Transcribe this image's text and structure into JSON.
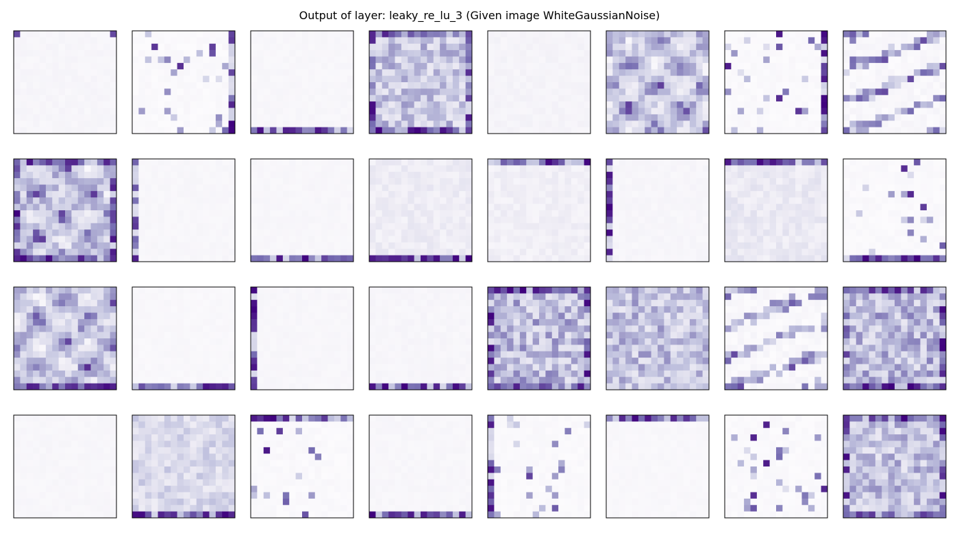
{
  "chart_data": {
    "type": "heatmap",
    "title": "Output of layer: leaky_re_lu_3 (Given image WhiteGaussianNoise)",
    "rows": 4,
    "cols": 8,
    "map_resolution": 16,
    "colormap": "Purples",
    "colormap_low": "#fcfbfd",
    "colormap_high": "#3f007d",
    "panels": [
      {
        "row": 0,
        "col": 0,
        "pattern": "faint-uniform",
        "mean_intensity": 0.06,
        "edge": "top-corners"
      },
      {
        "row": 0,
        "col": 1,
        "pattern": "sparse-specks",
        "mean_intensity": 0.08,
        "edge": "right"
      },
      {
        "row": 0,
        "col": 2,
        "pattern": "faint-uniform",
        "mean_intensity": 0.05,
        "edge": "bottom"
      },
      {
        "row": 0,
        "col": 3,
        "pattern": "dense-texture",
        "mean_intensity": 0.4,
        "edge": "all"
      },
      {
        "row": 0,
        "col": 4,
        "pattern": "faint-uniform",
        "mean_intensity": 0.08,
        "edge": "none"
      },
      {
        "row": 0,
        "col": 5,
        "pattern": "strong-blobs",
        "mean_intensity": 0.5,
        "edge": "none"
      },
      {
        "row": 0,
        "col": 6,
        "pattern": "sparse-specks",
        "mean_intensity": 0.07,
        "edge": "right"
      },
      {
        "row": 0,
        "col": 7,
        "pattern": "streaks",
        "mean_intensity": 0.25,
        "edge": "none"
      },
      {
        "row": 1,
        "col": 0,
        "pattern": "strong-blobs",
        "mean_intensity": 0.45,
        "edge": "all"
      },
      {
        "row": 1,
        "col": 1,
        "pattern": "faint-uniform",
        "mean_intensity": 0.05,
        "edge": "left"
      },
      {
        "row": 1,
        "col": 2,
        "pattern": "faint-uniform",
        "mean_intensity": 0.05,
        "edge": "bottom"
      },
      {
        "row": 1,
        "col": 3,
        "pattern": "medium-texture",
        "mean_intensity": 0.15,
        "edge": "bottom-right"
      },
      {
        "row": 1,
        "col": 4,
        "pattern": "medium-texture",
        "mean_intensity": 0.12,
        "edge": "top"
      },
      {
        "row": 1,
        "col": 5,
        "pattern": "faint-uniform",
        "mean_intensity": 0.06,
        "edge": "left"
      },
      {
        "row": 1,
        "col": 6,
        "pattern": "medium-texture",
        "mean_intensity": 0.18,
        "edge": "top"
      },
      {
        "row": 1,
        "col": 7,
        "pattern": "sparse-specks",
        "mean_intensity": 0.1,
        "edge": "bottom"
      },
      {
        "row": 2,
        "col": 0,
        "pattern": "strong-blobs",
        "mean_intensity": 0.45,
        "edge": "bottom"
      },
      {
        "row": 2,
        "col": 1,
        "pattern": "faint-uniform",
        "mean_intensity": 0.04,
        "edge": "bottom"
      },
      {
        "row": 2,
        "col": 2,
        "pattern": "faint-uniform",
        "mean_intensity": 0.05,
        "edge": "left"
      },
      {
        "row": 2,
        "col": 3,
        "pattern": "faint-uniform",
        "mean_intensity": 0.06,
        "edge": "bottom"
      },
      {
        "row": 2,
        "col": 4,
        "pattern": "dense-texture",
        "mean_intensity": 0.45,
        "edge": "all"
      },
      {
        "row": 2,
        "col": 5,
        "pattern": "dense-texture",
        "mean_intensity": 0.42,
        "edge": "none"
      },
      {
        "row": 2,
        "col": 6,
        "pattern": "streaks",
        "mean_intensity": 0.22,
        "edge": "none"
      },
      {
        "row": 2,
        "col": 7,
        "pattern": "dense-texture",
        "mean_intensity": 0.45,
        "edge": "all"
      },
      {
        "row": 3,
        "col": 0,
        "pattern": "faint-uniform",
        "mean_intensity": 0.05,
        "edge": "none"
      },
      {
        "row": 3,
        "col": 1,
        "pattern": "medium-texture",
        "mean_intensity": 0.3,
        "edge": "bottom"
      },
      {
        "row": 3,
        "col": 2,
        "pattern": "sparse-specks",
        "mean_intensity": 0.1,
        "edge": "top"
      },
      {
        "row": 3,
        "col": 3,
        "pattern": "faint-uniform",
        "mean_intensity": 0.05,
        "edge": "bottom-left"
      },
      {
        "row": 3,
        "col": 4,
        "pattern": "sparse-specks",
        "mean_intensity": 0.1,
        "edge": "left"
      },
      {
        "row": 3,
        "col": 5,
        "pattern": "faint-uniform",
        "mean_intensity": 0.04,
        "edge": "top"
      },
      {
        "row": 3,
        "col": 6,
        "pattern": "sparse-specks",
        "mean_intensity": 0.12,
        "edge": "none"
      },
      {
        "row": 3,
        "col": 7,
        "pattern": "dense-texture",
        "mean_intensity": 0.42,
        "edge": "all"
      }
    ]
  }
}
